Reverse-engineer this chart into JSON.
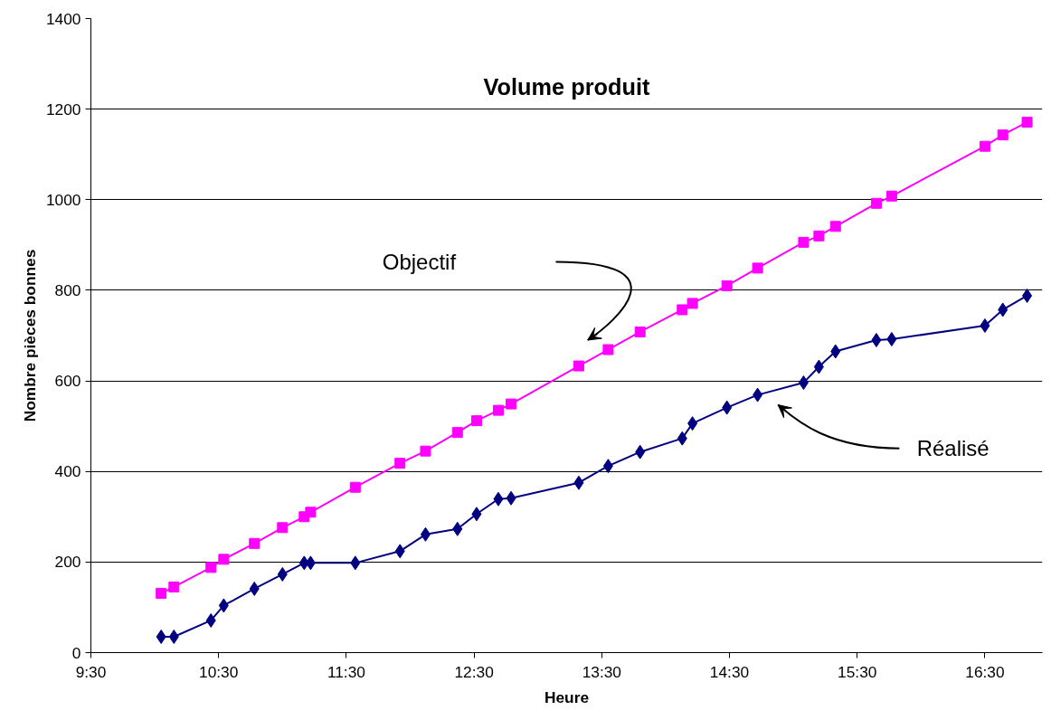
{
  "chart_data": {
    "type": "line",
    "title": "Volume produit",
    "xlabel": "Heure",
    "ylabel": "Nombre pièces bonnes",
    "x": [
      10.05,
      10.15,
      10.44,
      10.54,
      10.78,
      11.0,
      11.17,
      11.22,
      11.57,
      11.92,
      12.12,
      12.37,
      12.52,
      12.69,
      12.79,
      13.32,
      13.55,
      13.8,
      14.13,
      14.21,
      14.48,
      14.72,
      15.08,
      15.2,
      15.33,
      15.65,
      15.77,
      16.5,
      16.64,
      16.83
    ],
    "series": [
      {
        "color": "#ff00ff",
        "marker": "square",
        "values": [
          131,
          145,
          188,
          206,
          241,
          276,
          300,
          310,
          365,
          418,
          445,
          486,
          512,
          535,
          549,
          633,
          669,
          708,
          757,
          771,
          810,
          849,
          906,
          920,
          941,
          992,
          1008,
          1118,
          1143,
          1171
        ]
      },
      {
        "color": "#000080",
        "marker": "diamond",
        "values": [
          35,
          35,
          71,
          104,
          141,
          173,
          198,
          198,
          198,
          224,
          261,
          273,
          306,
          339,
          341,
          375,
          412,
          443,
          473,
          506,
          541,
          569,
          596,
          631,
          665,
          690,
          692,
          722,
          757,
          788
        ]
      }
    ],
    "annotations": [
      "Objectif",
      "Réalisé"
    ],
    "xlim": [
      9.5,
      16.95
    ],
    "ylim": [
      0,
      1400
    ],
    "xticks": [
      {
        "value": 9.5,
        "label": "9:30"
      },
      {
        "value": 10.5,
        "label": "10:30"
      },
      {
        "value": 11.5,
        "label": "11:30"
      },
      {
        "value": 12.5,
        "label": "12:30"
      },
      {
        "value": 13.5,
        "label": "13:30"
      },
      {
        "value": 14.5,
        "label": "14:30"
      },
      {
        "value": 15.5,
        "label": "15:30"
      },
      {
        "value": 16.5,
        "label": "16:30"
      }
    ],
    "yticks": [
      0,
      200,
      400,
      600,
      800,
      1000,
      1200,
      1400
    ],
    "grid": "y",
    "line_style": "solid"
  }
}
